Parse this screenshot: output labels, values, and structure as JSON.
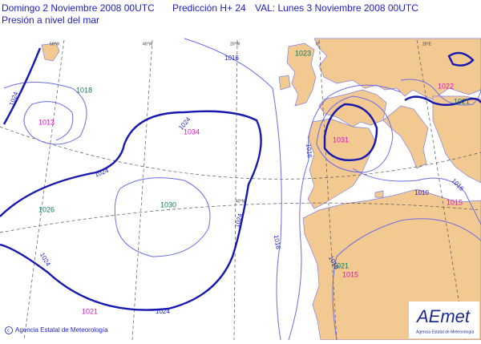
{
  "header": {
    "run": "Domingo 2 Noviembre 2008 00UTC",
    "forecast": "Predicción H+ 24",
    "valid": "VAL: Lunes 3 Noviembre 2008 00UTC",
    "field": "Presión a nivel del mar"
  },
  "grid_labels": [
    "60°W",
    "40°W",
    "20°W",
    "0°",
    "20°E",
    "40°N"
  ],
  "isobar_labels": [
    1016,
    1024,
    1024,
    1024,
    1024,
    1024,
    1024,
    1016,
    1016,
    1016,
    1010,
    1016
  ],
  "centers": [
    {
      "value": 1018,
      "color": "#0a7a5a"
    },
    {
      "value": 1013,
      "color": "#e010c0"
    },
    {
      "value": 1034,
      "color": "#e010c0"
    },
    {
      "value": 1030,
      "color": "#0a7a5a"
    },
    {
      "value": 1026,
      "color": "#0a7a5a"
    },
    {
      "value": 1021,
      "color": "#e010c0"
    },
    {
      "value": 1023,
      "color": "#0a7a5a"
    },
    {
      "value": 1031,
      "color": "#e010c0"
    },
    {
      "value": 1022,
      "color": "#e010c0"
    },
    {
      "value": 1021,
      "color": "#0a7a5a"
    },
    {
      "value": 1015,
      "color": "#e010c0"
    },
    {
      "value": 1021,
      "color": "#0a7a5a"
    },
    {
      "value": 1015,
      "color": "#e010c0"
    }
  ],
  "footer": {
    "credit": "Agencia Estatal de Meteorología",
    "logo": "AEmet",
    "logo_caption": "Agencia Estatal de Meteorología"
  }
}
